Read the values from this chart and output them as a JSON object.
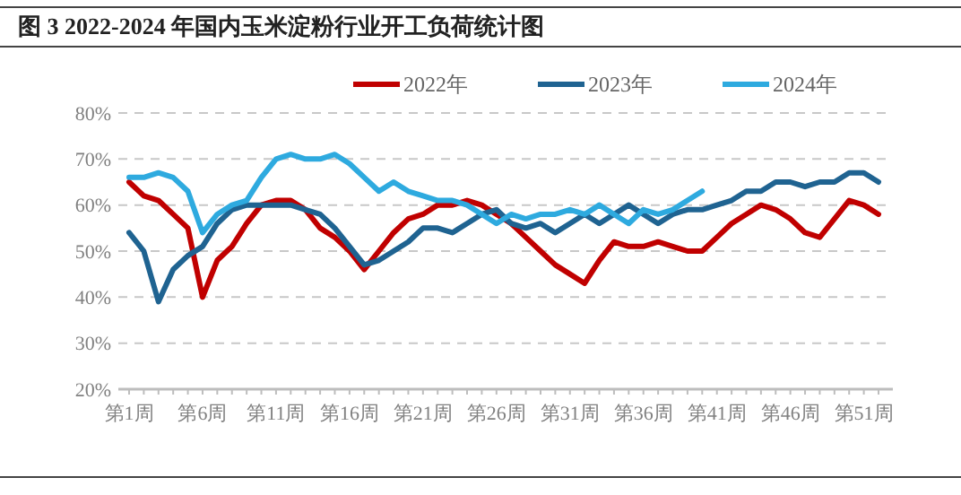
{
  "chart_data": {
    "type": "line",
    "title": "图 3 2022-2024 年国内玉米淀粉行业开工负荷统计图",
    "categories": [
      "第1周",
      null,
      null,
      null,
      null,
      "第6周",
      null,
      null,
      null,
      null,
      "第11周",
      null,
      null,
      null,
      null,
      "第16周",
      null,
      null,
      null,
      null,
      "第21周",
      null,
      null,
      null,
      null,
      "第26周",
      null,
      null,
      null,
      null,
      "第31周",
      null,
      null,
      null,
      null,
      "第36周",
      null,
      null,
      null,
      null,
      "第41周",
      null,
      null,
      null,
      null,
      "第46周",
      null,
      null,
      null,
      null,
      "第51周",
      null
    ],
    "series": [
      {
        "name": "2022年",
        "color": "#c00000",
        "values": [
          65,
          62,
          61,
          58,
          55,
          40,
          48,
          51,
          56,
          60,
          61,
          61,
          59,
          55,
          53,
          50,
          46,
          50,
          54,
          57,
          58,
          60,
          60,
          61,
          60,
          58,
          56,
          53,
          50,
          47,
          45,
          43,
          48,
          52,
          51,
          51,
          52,
          51,
          50,
          50,
          53,
          56,
          58,
          60,
          59,
          57,
          54,
          53,
          57,
          61,
          60,
          58
        ]
      },
      {
        "name": "2023年",
        "color": "#1f6391",
        "values": [
          54,
          50,
          39,
          46,
          49,
          51,
          56,
          59,
          60,
          60,
          60,
          60,
          59,
          58,
          55,
          51,
          47,
          48,
          50,
          52,
          55,
          55,
          54,
          56,
          58,
          59,
          56,
          55,
          56,
          54,
          56,
          58,
          56,
          58,
          60,
          58,
          56,
          58,
          59,
          59,
          60,
          61,
          63,
          63,
          65,
          65,
          64,
          65,
          65,
          67,
          67,
          65
        ]
      },
      {
        "name": "2024年",
        "color": "#2eaadf",
        "values": [
          66,
          66,
          67,
          66,
          63,
          54,
          58,
          60,
          61,
          66,
          70,
          71,
          70,
          70,
          71,
          69,
          66,
          63,
          65,
          63,
          62,
          61,
          61,
          60,
          58,
          56,
          58,
          57,
          58,
          58,
          59,
          58,
          60,
          58,
          56,
          59,
          58,
          59,
          61,
          63,
          null,
          null,
          null,
          null,
          null,
          null,
          null,
          null,
          null,
          null,
          null,
          null
        ]
      }
    ],
    "ylim": [
      20,
      80
    ],
    "yticks": [
      {
        "value": 20,
        "label": "20%"
      },
      {
        "value": 30,
        "label": "30%"
      },
      {
        "value": 40,
        "label": "40%"
      },
      {
        "value": 50,
        "label": "50%"
      },
      {
        "value": 60,
        "label": "60%"
      },
      {
        "value": 70,
        "label": "70%"
      },
      {
        "value": 80,
        "label": "80%"
      }
    ],
    "grid": "y",
    "legend": "top right",
    "marker": "none",
    "line_style": "solid"
  }
}
